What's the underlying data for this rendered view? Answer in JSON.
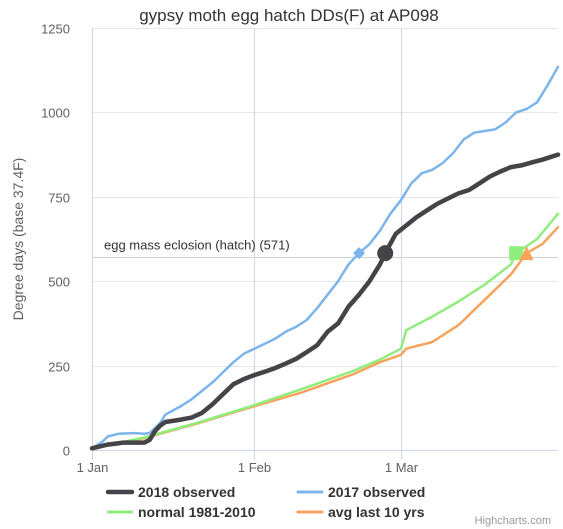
{
  "chart_data": {
    "type": "line",
    "title": "gypsy moth egg hatch DDs(F) at AP098",
    "ylabel": "Degree days (base 37.4F)",
    "xlabel": "",
    "ylim": [
      0,
      1250
    ],
    "xlim_days": [
      0,
      89
    ],
    "y_ticks": [
      0,
      250,
      500,
      750,
      1000,
      1250
    ],
    "x_ticks": [
      {
        "day": 0,
        "label": "1 Jan"
      },
      {
        "day": 31,
        "label": "1 Feb"
      },
      {
        "day": 59,
        "label": "1 Mar"
      }
    ],
    "grid": "horizontal",
    "legend_position": "bottom",
    "threshold": {
      "value": 571,
      "label": "egg mass eclosion (hatch) (571)"
    },
    "series": [
      {
        "name": "2018 observed",
        "color": "#434348",
        "marker": {
          "shape": "circle",
          "day": 56,
          "value": 583
        },
        "points": [
          [
            0,
            5
          ],
          [
            3,
            16
          ],
          [
            6,
            22
          ],
          [
            8,
            22
          ],
          [
            10,
            22
          ],
          [
            11,
            30
          ],
          [
            12,
            55
          ],
          [
            13,
            72
          ],
          [
            14,
            83
          ],
          [
            17,
            90
          ],
          [
            19,
            96
          ],
          [
            21,
            110
          ],
          [
            23,
            135
          ],
          [
            25,
            165
          ],
          [
            27,
            195
          ],
          [
            29,
            210
          ],
          [
            31,
            222
          ],
          [
            33,
            232
          ],
          [
            35,
            243
          ],
          [
            37,
            256
          ],
          [
            39,
            270
          ],
          [
            41,
            290
          ],
          [
            43,
            310
          ],
          [
            45,
            350
          ],
          [
            47,
            375
          ],
          [
            49,
            425
          ],
          [
            51,
            460
          ],
          [
            53,
            500
          ],
          [
            55,
            550
          ],
          [
            56,
            583
          ],
          [
            58,
            640
          ],
          [
            60,
            665
          ],
          [
            62,
            690
          ],
          [
            64,
            710
          ],
          [
            66,
            730
          ],
          [
            68,
            745
          ],
          [
            70,
            760
          ],
          [
            72,
            770
          ],
          [
            74,
            790
          ],
          [
            76,
            810
          ],
          [
            78,
            825
          ],
          [
            80,
            838
          ],
          [
            82,
            843
          ],
          [
            84,
            852
          ],
          [
            86,
            860
          ],
          [
            88,
            870
          ],
          [
            89,
            875
          ]
        ]
      },
      {
        "name": "2017 observed",
        "color": "#7cb5ec",
        "marker": {
          "shape": "diamond",
          "day": 51,
          "value": 583
        },
        "points": [
          [
            0,
            5
          ],
          [
            2,
            25
          ],
          [
            3,
            40
          ],
          [
            5,
            48
          ],
          [
            8,
            50
          ],
          [
            10,
            48
          ],
          [
            11,
            50
          ],
          [
            13,
            80
          ],
          [
            14,
            105
          ],
          [
            17,
            130
          ],
          [
            19,
            150
          ],
          [
            21,
            175
          ],
          [
            23,
            200
          ],
          [
            25,
            230
          ],
          [
            27,
            260
          ],
          [
            29,
            285
          ],
          [
            31,
            300
          ],
          [
            33,
            315
          ],
          [
            35,
            330
          ],
          [
            37,
            350
          ],
          [
            39,
            365
          ],
          [
            41,
            385
          ],
          [
            43,
            420
          ],
          [
            45,
            460
          ],
          [
            47,
            500
          ],
          [
            49,
            550
          ],
          [
            51,
            583
          ],
          [
            53,
            610
          ],
          [
            55,
            650
          ],
          [
            57,
            700
          ],
          [
            59,
            740
          ],
          [
            61,
            790
          ],
          [
            63,
            820
          ],
          [
            65,
            830
          ],
          [
            67,
            850
          ],
          [
            69,
            880
          ],
          [
            71,
            920
          ],
          [
            73,
            940
          ],
          [
            75,
            945
          ],
          [
            77,
            950
          ],
          [
            79,
            970
          ],
          [
            81,
            1000
          ],
          [
            83,
            1010
          ],
          [
            85,
            1030
          ],
          [
            87,
            1080
          ],
          [
            89,
            1135
          ]
        ]
      },
      {
        "name": "normal 1981-2010",
        "color": "#90ed7d",
        "marker": {
          "shape": "square",
          "day": 81,
          "value": 583
        },
        "points": [
          [
            0,
            5
          ],
          [
            10,
            37
          ],
          [
            20,
            80
          ],
          [
            30,
            128
          ],
          [
            40,
            180
          ],
          [
            50,
            235
          ],
          [
            55,
            268
          ],
          [
            59,
            300
          ],
          [
            60,
            355
          ],
          [
            65,
            395
          ],
          [
            70,
            440
          ],
          [
            75,
            490
          ],
          [
            80,
            550
          ],
          [
            81,
            583
          ],
          [
            85,
            625
          ],
          [
            89,
            700
          ]
        ]
      },
      {
        "name": "avg last 10 yrs",
        "color": "#f7a35c",
        "marker": {
          "shape": "triangle",
          "day": 83,
          "value": 583
        },
        "points": [
          [
            0,
            5
          ],
          [
            10,
            35
          ],
          [
            20,
            78
          ],
          [
            30,
            125
          ],
          [
            40,
            170
          ],
          [
            50,
            225
          ],
          [
            55,
            260
          ],
          [
            59,
            282
          ],
          [
            60,
            300
          ],
          [
            65,
            320
          ],
          [
            70,
            370
          ],
          [
            75,
            445
          ],
          [
            80,
            520
          ],
          [
            83,
            583
          ],
          [
            86,
            610
          ],
          [
            89,
            660
          ]
        ]
      }
    ]
  },
  "credits": "Highcharts.com"
}
